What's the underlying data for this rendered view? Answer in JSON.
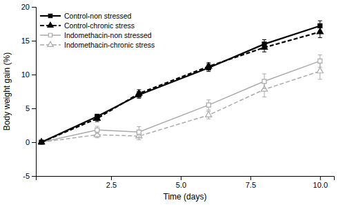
{
  "chart_data": {
    "type": "line",
    "x": [
      0,
      2,
      3.5,
      6,
      8,
      10
    ],
    "series": [
      {
        "name": "Control-non stressed",
        "color": "#000000",
        "marker": "square",
        "line_style": "solid",
        "values": [
          0,
          3.8,
          7.0,
          11.0,
          14.5,
          17.2
        ],
        "errors": [
          0,
          0.35,
          0.5,
          0.55,
          0.65,
          0.75
        ]
      },
      {
        "name": "Control-chronic stress",
        "color": "#000000",
        "marker": "triangle-up",
        "line_style": "dashed",
        "values": [
          0,
          3.5,
          7.2,
          11.2,
          14.0,
          16.3
        ],
        "errors": [
          0,
          0.45,
          0.55,
          0.55,
          0.65,
          0.85
        ]
      },
      {
        "name": "Indomethacin-non stressed",
        "color": "#aaaaaa",
        "marker": "square-open",
        "line_style": "solid",
        "values": [
          0,
          1.8,
          1.5,
          5.5,
          9.0,
          12.0
        ],
        "errors": [
          0,
          0.55,
          0.8,
          0.75,
          1.1,
          0.9
        ]
      },
      {
        "name": "Indomethacin-chronic stress",
        "color": "#aaaaaa",
        "marker": "triangle-up-open",
        "line_style": "dashed",
        "values": [
          0,
          1.1,
          0.9,
          4.0,
          7.8,
          10.5
        ],
        "errors": [
          0,
          0.45,
          0.55,
          0.55,
          1.1,
          1.2
        ]
      }
    ],
    "xlabel": "Time (days)",
    "ylabel": "Body weight gain (%)",
    "xlim": [
      -0.2,
      10.5
    ],
    "ylim": [
      -5,
      20
    ],
    "xticks": [
      2.5,
      {
        "value": 5,
        "label": "5.0"
      },
      7.5,
      {
        "value": 10,
        "label": "10.0"
      }
    ],
    "yticks": [
      -5,
      0,
      5,
      10,
      15,
      20
    ],
    "legend": "upper left",
    "grid": false
  }
}
